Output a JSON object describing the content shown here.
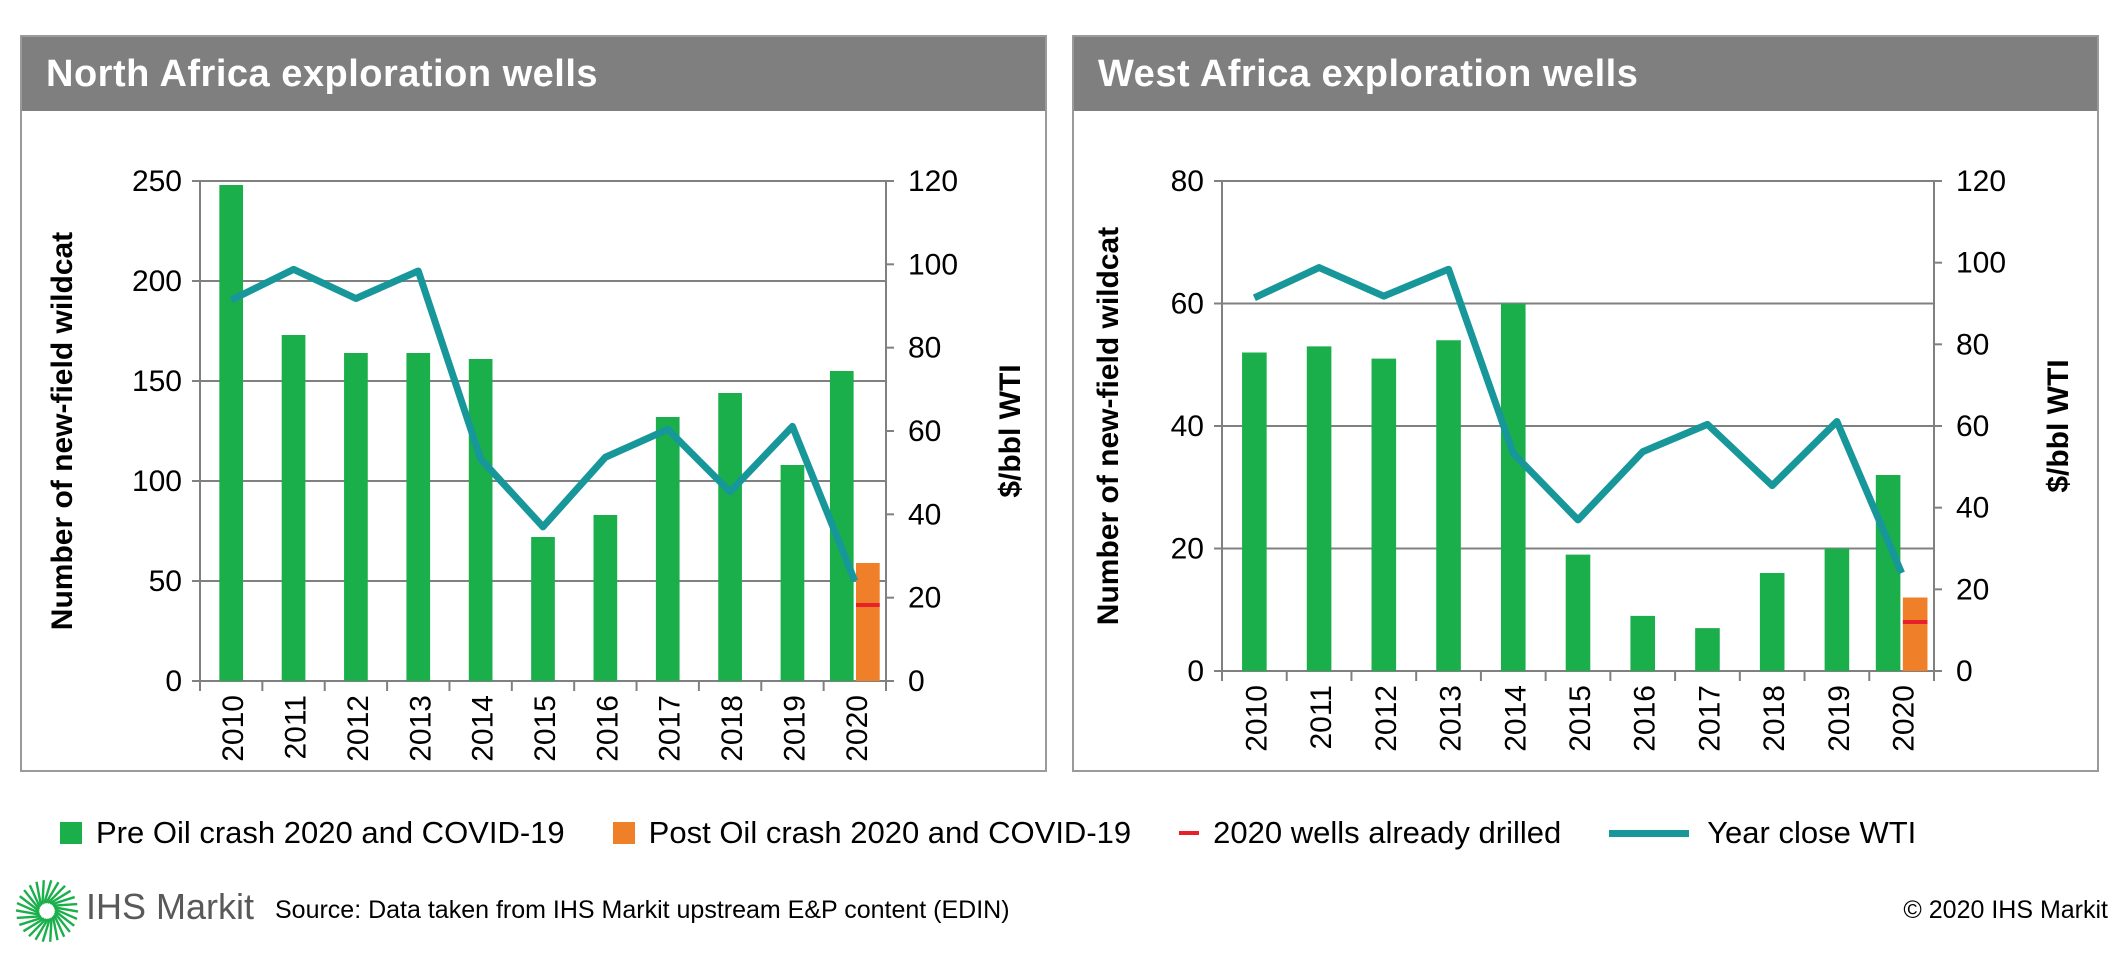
{
  "panels": [
    {
      "title": "North Africa  exploration wells"
    },
    {
      "title": "West Africa  exploration wells"
    }
  ],
  "colors": {
    "pre": "#1aaf4b",
    "post": "#f07f2a",
    "drilled": "#e8202a",
    "wti": "#17979a",
    "grid": "#808080",
    "header": "#7f7f7f"
  },
  "legend": {
    "pre": "Pre Oil crash 2020 and COVID-19",
    "post": "Post Oil crash 2020 and COVID-19",
    "drilled": "2020 wells already drilled",
    "wti": "Year close WTI"
  },
  "footer": {
    "brand": "IHS Markit",
    "source": "Source: Data taken from IHS Markit upstream E&P content (EDIN)",
    "copyright": "© 2020 IHS Markit"
  },
  "chart_data": [
    {
      "type": "bar",
      "title": "North Africa  exploration wells",
      "ylabel": "Number of new-field wildcat",
      "y2label": "$/bbl WTI",
      "categories": [
        "2010",
        "2011",
        "2012",
        "2013",
        "2014",
        "2015",
        "2016",
        "2017",
        "2018",
        "2019",
        "2020"
      ],
      "ylim": [
        0,
        250
      ],
      "yticks": [
        0,
        50,
        100,
        150,
        200,
        250
      ],
      "y2lim": [
        0,
        120
      ],
      "y2ticks": [
        0,
        20,
        40,
        60,
        80,
        100,
        120
      ],
      "grid": true,
      "series": [
        {
          "name": "Pre Oil crash 2020 and COVID-19",
          "kind": "bar",
          "values": [
            248,
            173,
            164,
            164,
            161,
            72,
            83,
            132,
            144,
            108,
            155
          ]
        },
        {
          "name": "Post Oil crash 2020 and COVID-19",
          "kind": "bar",
          "values": [
            null,
            null,
            null,
            null,
            null,
            null,
            null,
            null,
            null,
            null,
            59
          ]
        },
        {
          "name": "2020 wells already drilled",
          "kind": "marker",
          "values": [
            null,
            null,
            null,
            null,
            null,
            null,
            null,
            null,
            null,
            null,
            38
          ]
        },
        {
          "name": "Year close WTI",
          "kind": "line",
          "axis": "right",
          "values": [
            91.4,
            98.8,
            91.8,
            98.4,
            53.3,
            37.0,
            53.7,
            60.4,
            45.4,
            61.1,
            24
          ]
        }
      ]
    },
    {
      "type": "bar",
      "title": "West Africa  exploration wells",
      "ylabel": "Number of new-field wildcat",
      "y2label": "$/bbl WTI",
      "categories": [
        "2010",
        "2011",
        "2012",
        "2013",
        "2014",
        "2015",
        "2016",
        "2017",
        "2018",
        "2019",
        "2020"
      ],
      "ylim": [
        0,
        80
      ],
      "yticks": [
        0,
        20,
        40,
        60,
        80
      ],
      "y2lim": [
        0,
        120
      ],
      "y2ticks": [
        0,
        20,
        40,
        60,
        80,
        100,
        120
      ],
      "grid": true,
      "series": [
        {
          "name": "Pre Oil crash 2020 and COVID-19",
          "kind": "bar",
          "values": [
            52,
            53,
            51,
            54,
            60,
            19,
            9,
            7,
            16,
            20,
            32
          ]
        },
        {
          "name": "Post Oil crash 2020 and COVID-19",
          "kind": "bar",
          "values": [
            null,
            null,
            null,
            null,
            null,
            null,
            null,
            null,
            null,
            null,
            12
          ]
        },
        {
          "name": "2020 wells already drilled",
          "kind": "marker",
          "values": [
            null,
            null,
            null,
            null,
            null,
            null,
            null,
            null,
            null,
            null,
            8
          ]
        },
        {
          "name": "Year close WTI",
          "kind": "line",
          "axis": "right",
          "values": [
            91.4,
            98.8,
            91.8,
            98.4,
            53.3,
            37.0,
            53.7,
            60.4,
            45.4,
            61.1,
            24
          ]
        }
      ]
    }
  ]
}
